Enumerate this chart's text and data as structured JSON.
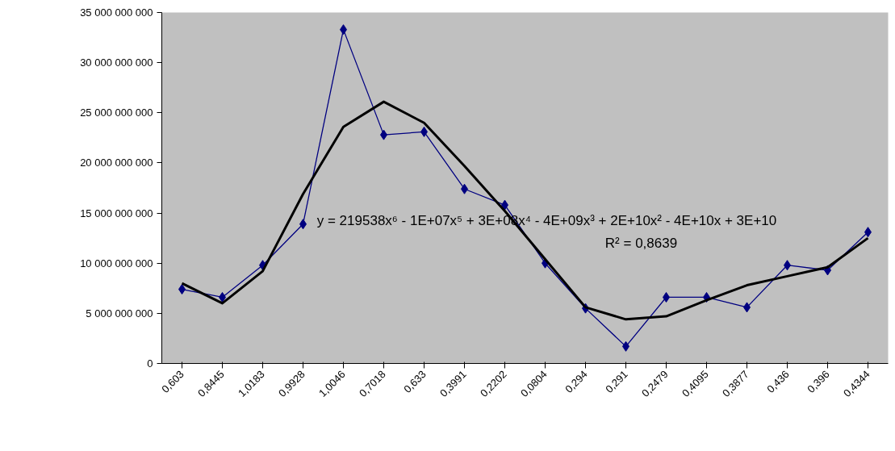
{
  "chart_data": {
    "type": "line",
    "categories": [
      "0,603",
      "0,8445",
      "1,0183",
      "0,9928",
      "1,0046",
      "0,7018",
      "0,633",
      "0,3991",
      "0,2202",
      "0,0804",
      "0,294",
      "0,291",
      "0,2479",
      "0,4095",
      "0,3877",
      "0,436",
      "0,396",
      "0,4344"
    ],
    "series": [
      {
        "color": "#000080",
        "marker": "diamond",
        "values": [
          7400000000,
          6600000000,
          9800000000,
          13900000000,
          33300000000,
          22800000000,
          23100000000,
          17400000000,
          15800000000,
          10000000000,
          5500000000,
          1700000000,
          6600000000,
          6600000000,
          5600000000,
          9800000000,
          9300000000,
          13100000000
        ]
      },
      {
        "type": "line",
        "color": "#000000",
        "marker": "none",
        "values": [
          8000000000,
          6000000000,
          9200000000,
          16900000000,
          23600000000,
          26100000000,
          24000000000,
          19700000000,
          15200000000,
          10400000000,
          5600000000,
          4400000000,
          4700000000,
          6300000000,
          7800000000,
          8700000000,
          9600000000,
          12500000000
        ]
      }
    ],
    "ylim": [
      0,
      35000000000
    ],
    "yticks": [
      {
        "value": 0,
        "label": "0"
      },
      {
        "value": 5000000000,
        "label": "5 000 000 000"
      },
      {
        "value": 10000000000,
        "label": "10 000 000 000"
      },
      {
        "value": 15000000000,
        "label": "15 000 000 000"
      },
      {
        "value": 20000000000,
        "label": "20 000 000 000"
      },
      {
        "value": 25000000000,
        "label": "25 000 000 000"
      },
      {
        "value": 30000000000,
        "label": "30 000 000 000"
      },
      {
        "value": 35000000000,
        "label": "35 000 000 000"
      }
    ],
    "annotations": [
      "y = 219538x⁶ - 1E+07x⁵ + 3E+08x⁴ - 4E+09x³ + 2E+10x² - 4E+10x + 3E+10",
      "R² = 0,8639"
    ],
    "grid": false
  }
}
